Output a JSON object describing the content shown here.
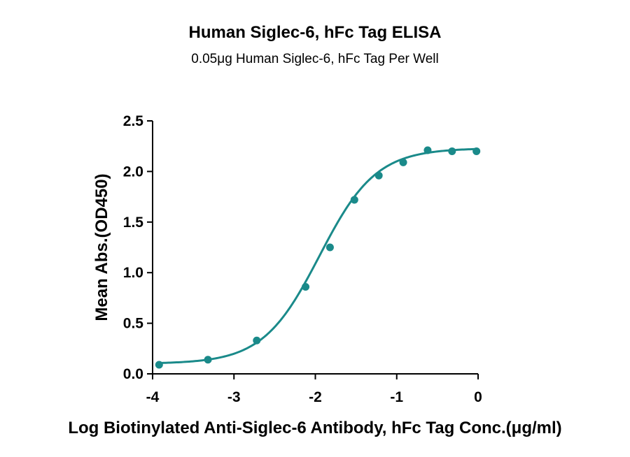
{
  "chart_data": {
    "type": "scatter",
    "title": "Human Siglec-6, hFc Tag ELISA",
    "subtitle": "0.05μg Human Siglec-6, hFc Tag Per Well",
    "xlabel": "Log Biotinylated Anti-Siglec-6 Antibody, hFc Tag Conc.(μg/ml)",
    "ylabel": "Mean Abs.(OD450)",
    "xlim": [
      -4,
      0
    ],
    "ylim": [
      0,
      2.5
    ],
    "xticks": [
      -4,
      -3,
      -2,
      -1,
      0
    ],
    "xtick_labels": [
      "-4",
      "-3",
      "-2",
      "-1",
      "0"
    ],
    "yticks": [
      0,
      0.5,
      1,
      1.5,
      2,
      2.5
    ],
    "ytick_labels": [
      "0.0",
      "0.5",
      "1.0",
      "1.5",
      "2.0",
      "2.5"
    ],
    "color": "#1a8a8a",
    "grid": false,
    "series": [
      {
        "x": [
          -3.92,
          -3.32,
          -2.72,
          -2.12,
          -1.82,
          -1.52,
          -1.22,
          -0.92,
          -0.62,
          -0.32,
          -0.02
        ],
        "y": [
          0.09,
          0.14,
          0.33,
          0.86,
          1.25,
          1.72,
          1.96,
          2.09,
          2.21,
          2.2,
          2.2
        ]
      }
    ],
    "fit": {
      "model": "4PL",
      "bottom": 0.1,
      "top": 2.23,
      "logEC50": -1.95,
      "hill": 1.25
    }
  }
}
